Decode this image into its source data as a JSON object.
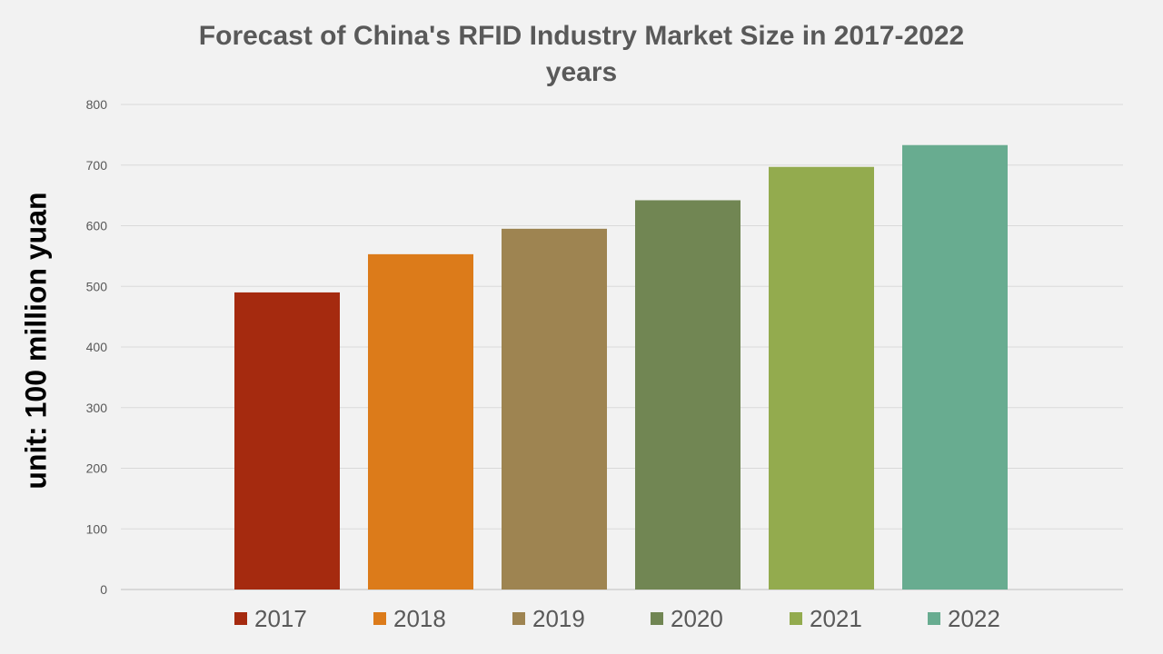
{
  "chart_data": {
    "type": "bar",
    "title": "Forecast of China's RFID Industry Market Size in 2017-2022 years",
    "title_lines": [
      "Forecast of China's RFID Industry Market Size in 2017-2022",
      "years"
    ],
    "xlabel": "",
    "ylabel": "unit: 100 million yuan",
    "ylim": [
      0,
      800
    ],
    "yticks": [
      0,
      100,
      200,
      300,
      400,
      500,
      600,
      700,
      800
    ],
    "grid": true,
    "legend_position": "bottom",
    "series": [
      {
        "name": "2017",
        "value": 490,
        "color": "#a52a0f"
      },
      {
        "name": "2018",
        "value": 553,
        "color": "#dc7b1a"
      },
      {
        "name": "2019",
        "value": 595,
        "color": "#9e8451"
      },
      {
        "name": "2020",
        "value": 642,
        "color": "#718653"
      },
      {
        "name": "2021",
        "value": 697,
        "color": "#93ab4e"
      },
      {
        "name": "2022",
        "value": 733,
        "color": "#68ac90"
      }
    ]
  }
}
